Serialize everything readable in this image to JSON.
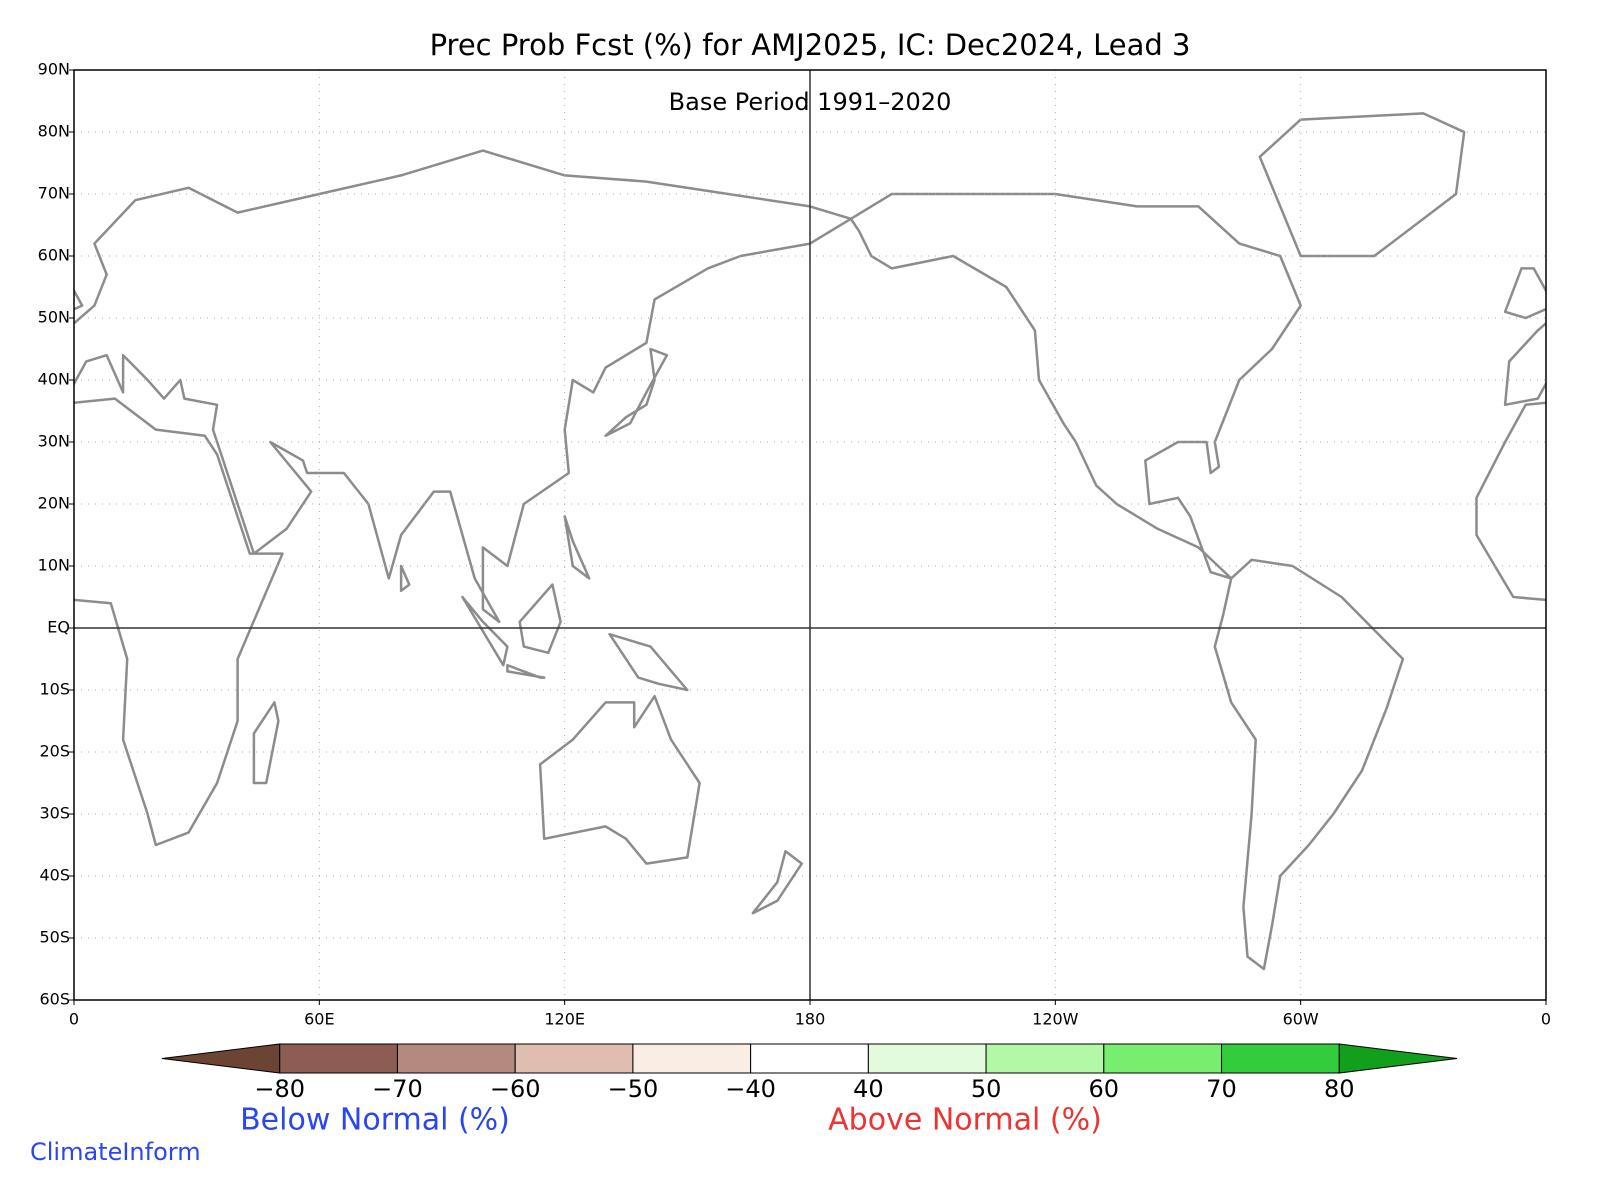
{
  "map": {
    "title": "Prec Prob Fcst (%) for AMJ2025, IC: Dec2024, Lead 3",
    "subtitle": "Base Period 1991–2020",
    "xlim": [
      0,
      360
    ],
    "ylim": [
      -60,
      90
    ],
    "xticks": [
      0,
      {
        "value": 60,
        "label": "60E"
      },
      {
        "value": 120,
        "label": "120E"
      },
      180,
      {
        "value": 240,
        "label": "120W"
      },
      {
        "value": 300,
        "label": "60W"
      },
      {
        "value": 360,
        "label": "0"
      }
    ],
    "yticks": [
      {
        "value": 90,
        "label": "90N"
      },
      {
        "value": 80,
        "label": "80N"
      },
      {
        "value": 70,
        "label": "70N"
      },
      {
        "value": 60,
        "label": "60N"
      },
      {
        "value": 50,
        "label": "50N"
      },
      {
        "value": 40,
        "label": "40N"
      },
      {
        "value": 30,
        "label": "30N"
      },
      {
        "value": 20,
        "label": "20N"
      },
      {
        "value": 10,
        "label": "10N"
      },
      {
        "value": 0,
        "label": "EQ"
      },
      {
        "value": -10,
        "label": "10S"
      },
      {
        "value": -20,
        "label": "20S"
      },
      {
        "value": -30,
        "label": "30S"
      },
      {
        "value": -40,
        "label": "40S"
      },
      {
        "value": -50,
        "label": "50S"
      },
      {
        "value": -60,
        "label": "60S"
      }
    ],
    "grid": true,
    "colorbar": {
      "levels": [
        {
          "value": -80,
          "label": "−80"
        },
        {
          "value": -70,
          "label": "−70"
        },
        {
          "value": -60,
          "label": "−60"
        },
        {
          "value": -50,
          "label": "−50"
        },
        {
          "value": -40,
          "label": "−40"
        },
        40,
        50,
        60,
        70,
        80
      ],
      "colors": [
        "#6b4434",
        "#8d5d51",
        "#b48a7f",
        "#dfbdb1",
        "#f9ede4",
        "#ffffff",
        "#e2fbdc",
        "#b3f8a6",
        "#78ee6e",
        "#33cc3c",
        "#12a01c"
      ],
      "below_label": "Below Normal (%)",
      "above_label": "Above Normal (%)"
    }
  },
  "credit": "ClimateInform"
}
